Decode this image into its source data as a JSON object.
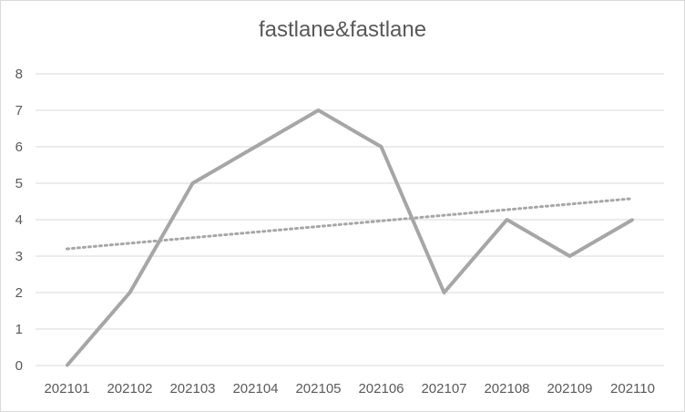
{
  "chart_data": {
    "type": "line",
    "title": "fastlane&fastlane",
    "categories": [
      "202101",
      "202102",
      "202103",
      "202104",
      "202105",
      "202106",
      "202107",
      "202108",
      "202109",
      "202110"
    ],
    "series": [
      {
        "values": [
          0,
          2,
          5,
          6,
          7,
          6,
          2,
          4,
          3,
          4
        ],
        "color": "#a6a6a6"
      }
    ],
    "trendline": {
      "type": "linear",
      "style": "dotted",
      "color": "#a6a6a6",
      "start": 3.2,
      "end": 4.58
    },
    "ylim": [
      0,
      8
    ],
    "yticks": [
      0,
      1,
      2,
      3,
      4,
      5,
      6,
      7,
      8
    ],
    "grid": true,
    "legend": "none",
    "colors": {
      "gridline": "#d9d9d9",
      "axis_text": "#595959"
    }
  }
}
